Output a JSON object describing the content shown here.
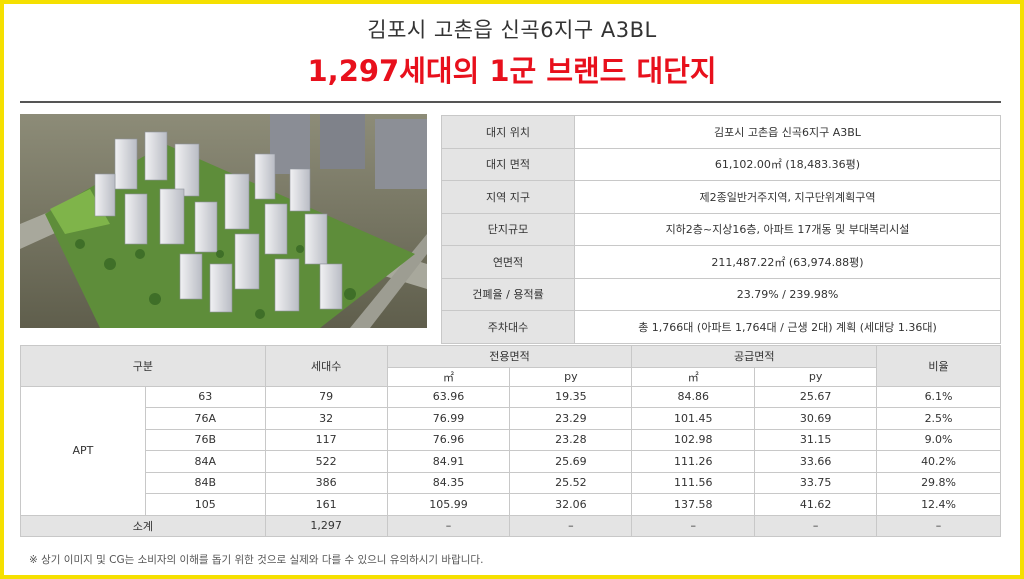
{
  "header": {
    "subtitle": "김포시 고촌읍 신곡6지구 A3BL",
    "headline": "1,297세대의 1군 브랜드 대단지"
  },
  "colors": {
    "accent_red": "#e8101c",
    "frame_yellow": "#f5e000",
    "header_gray": "#e4e4e4"
  },
  "info": [
    {
      "label": "대지 위치",
      "value": "김포시 고촌읍 신곡6지구 A3BL"
    },
    {
      "label": "대지 면적",
      "value": "61,102.00㎡ (18,483.36평)"
    },
    {
      "label": "지역 지구",
      "value": "제2종일반거주지역, 지구단위계획구역"
    },
    {
      "label": "단지규모",
      "value": "지하2층~지상16층, 아파트 17개동 및 부대복리시설"
    },
    {
      "label": "연면적",
      "value": "211,487.22㎡ (63,974.88평)"
    },
    {
      "label": "건폐율 / 용적률",
      "value": "23.79% / 239.98%"
    },
    {
      "label": "주차대수",
      "value": "총 1,766대 (아파트 1,764대 / 근생 2대) 계획 (세대당 1.36대)"
    }
  ],
  "units": {
    "headers": {
      "category": "구분",
      "households": "세대수",
      "exclusive": "전용면적",
      "supply": "공급면적",
      "ratio": "비율",
      "sqm": "㎡",
      "py": "py"
    },
    "group_label": "APT",
    "rows": [
      {
        "type": "63",
        "households": "79",
        "ex_sqm": "63.96",
        "ex_py": "19.35",
        "sup_sqm": "84.86",
        "sup_py": "25.67",
        "ratio": "6.1%"
      },
      {
        "type": "76A",
        "households": "32",
        "ex_sqm": "76.99",
        "ex_py": "23.29",
        "sup_sqm": "101.45",
        "sup_py": "30.69",
        "ratio": "2.5%"
      },
      {
        "type": "76B",
        "households": "117",
        "ex_sqm": "76.96",
        "ex_py": "23.28",
        "sup_sqm": "102.98",
        "sup_py": "31.15",
        "ratio": "9.0%"
      },
      {
        "type": "84A",
        "households": "522",
        "ex_sqm": "84.91",
        "ex_py": "25.69",
        "sup_sqm": "111.26",
        "sup_py": "33.66",
        "ratio": "40.2%"
      },
      {
        "type": "84B",
        "households": "386",
        "ex_sqm": "84.35",
        "ex_py": "25.52",
        "sup_sqm": "111.56",
        "sup_py": "33.75",
        "ratio": "29.8%"
      },
      {
        "type": "105",
        "households": "161",
        "ex_sqm": "105.99",
        "ex_py": "32.06",
        "sup_sqm": "137.58",
        "sup_py": "41.62",
        "ratio": "12.4%"
      }
    ],
    "total": {
      "label": "소계",
      "households": "1,297",
      "ex_sqm": "–",
      "ex_py": "–",
      "sup_sqm": "–",
      "sup_py": "–",
      "ratio": "–"
    }
  },
  "footnote": "※ 상기 이미지 및 CG는 소비자의 이해를 돕기 위한 것으로 실제와 다를 수 있으니 유의하시기 바랍니다."
}
